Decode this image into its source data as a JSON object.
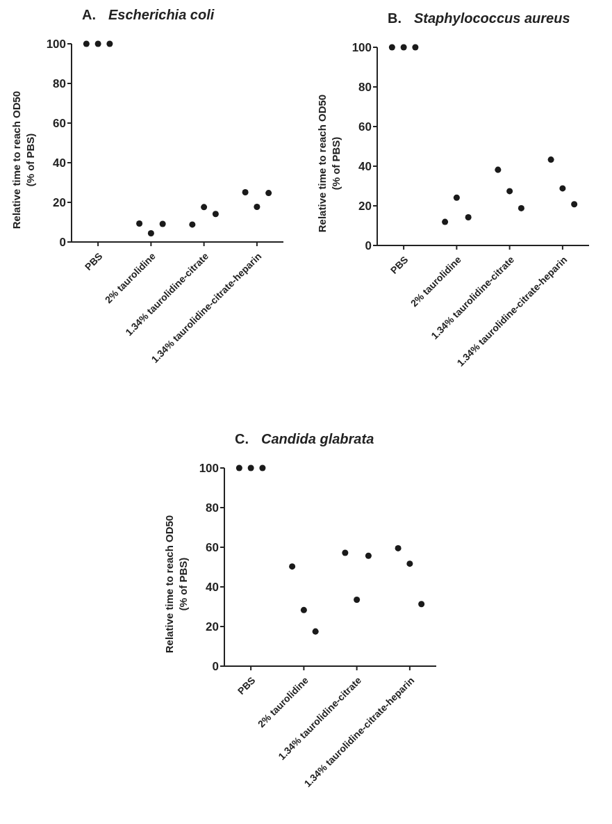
{
  "chart_data": [
    {
      "type": "scatter",
      "title": "A. Escherichia coli",
      "ylabel": "Relative time to reach OD50\n(% of PBS)",
      "categories": [
        "PBS",
        "2% taurolidine",
        "1.34% taurolidine-citrate",
        "1.34% taurolidine-citrate-heparin"
      ],
      "ylim": [
        0,
        100
      ],
      "yticks": [
        0,
        20,
        40,
        60,
        80,
        100
      ],
      "marker": "circle",
      "series": [
        {
          "color": "#1a1a1a",
          "values": [
            100,
            9.3,
            8.8,
            25.1
          ]
        },
        {
          "color": "#1a1a1a",
          "values": [
            100,
            4.4,
            17.6,
            17.7
          ]
        },
        {
          "color": "#1a1a1a",
          "values": [
            100,
            9.1,
            14.1,
            24.7
          ]
        }
      ]
    },
    {
      "type": "scatter",
      "title": "B. Staphylococcus aureus",
      "ylabel": "Relative time to reach OD50\n(% of PBS)",
      "categories": [
        "PBS",
        "2% taurolidine",
        "1.34% taurolidine-citrate",
        "1.34% taurolidine-citrate-heparin"
      ],
      "ylim": [
        0,
        100
      ],
      "yticks": [
        0,
        20,
        40,
        60,
        80,
        100
      ],
      "marker": "circle",
      "series": [
        {
          "color": "#1a1a1a",
          "values": [
            100,
            11.9,
            38.2,
            43.3
          ]
        },
        {
          "color": "#1a1a1a",
          "values": [
            100,
            24.1,
            27.4,
            28.8
          ]
        },
        {
          "color": "#1a1a1a",
          "values": [
            100,
            14.2,
            18.8,
            20.8
          ]
        }
      ]
    },
    {
      "type": "scatter",
      "title": "C. Candida glabrata",
      "ylabel": "Relative time to reach OD50\n(% of PBS)",
      "categories": [
        "PBS",
        "2% taurolidine",
        "1.34% taurolidine-citrate",
        "1.34% taurolidine-citrate-heparin"
      ],
      "ylim": [
        0,
        100
      ],
      "yticks": [
        0,
        20,
        40,
        60,
        80,
        100
      ],
      "marker": "circle",
      "series": [
        {
          "color": "#1a1a1a",
          "values": [
            100,
            50.3,
            57.2,
            59.5
          ]
        },
        {
          "color": "#1a1a1a",
          "values": [
            100,
            28.3,
            33.5,
            51.7
          ]
        },
        {
          "color": "#1a1a1a",
          "values": [
            100,
            17.5,
            55.7,
            31.3
          ]
        }
      ]
    }
  ]
}
